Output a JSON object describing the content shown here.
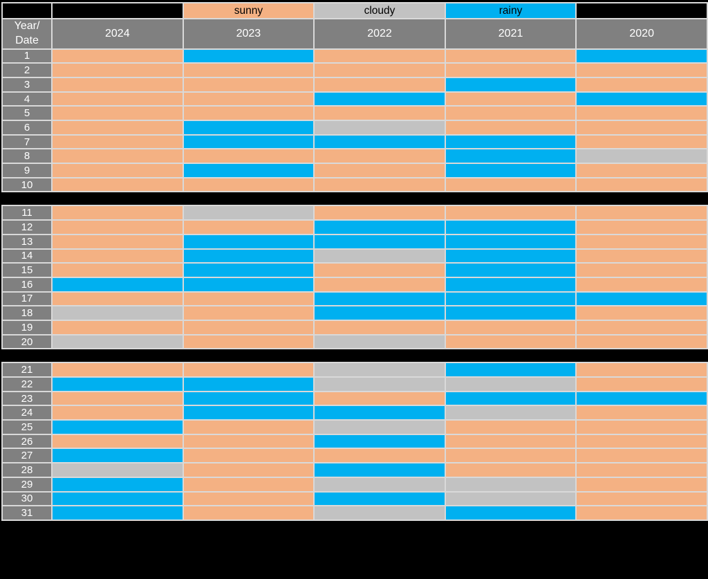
{
  "colors": {
    "sunny": "#F4B183",
    "cloudy": "#C2C2C2",
    "rainy": "#00B0F0",
    "header_bg": "#808080",
    "header_text": "#FFFFFF",
    "grid_line": "#D9D9D9",
    "page_background": "#000000"
  },
  "legend": {
    "items": [
      {
        "label": "sunny",
        "color": "#F4B183"
      },
      {
        "label": "cloudy",
        "color": "#C2C2C2"
      },
      {
        "label": "rainy",
        "color": "#00B0F0"
      }
    ]
  },
  "header": {
    "corner_label": "Year/\nDate"
  },
  "chart_data": {
    "type": "heatmap",
    "title": "",
    "x_labels": [
      "2024",
      "2023",
      "2022",
      "2021",
      "2020"
    ],
    "y_labels": [
      1,
      2,
      3,
      4,
      5,
      6,
      7,
      8,
      9,
      10,
      11,
      12,
      13,
      14,
      15,
      16,
      17,
      18,
      19,
      20,
      21,
      22,
      23,
      24,
      25,
      26,
      27,
      28,
      29,
      30,
      31
    ],
    "categories": [
      "sunny",
      "cloudy",
      "rainy"
    ],
    "row_groups": [
      [
        1,
        10
      ],
      [
        11,
        20
      ],
      [
        21,
        31
      ]
    ],
    "legend_position": "top",
    "values": [
      [
        "sunny",
        "rainy",
        "sunny",
        "sunny",
        "rainy"
      ],
      [
        "sunny",
        "sunny",
        "sunny",
        "sunny",
        "sunny"
      ],
      [
        "sunny",
        "sunny",
        "sunny",
        "rainy",
        "sunny"
      ],
      [
        "sunny",
        "sunny",
        "rainy",
        "sunny",
        "rainy"
      ],
      [
        "sunny",
        "sunny",
        "sunny",
        "sunny",
        "sunny"
      ],
      [
        "sunny",
        "rainy",
        "cloudy",
        "sunny",
        "sunny"
      ],
      [
        "sunny",
        "rainy",
        "rainy",
        "rainy",
        "sunny"
      ],
      [
        "sunny",
        "sunny",
        "sunny",
        "rainy",
        "cloudy"
      ],
      [
        "sunny",
        "rainy",
        "sunny",
        "rainy",
        "sunny"
      ],
      [
        "sunny",
        "sunny",
        "sunny",
        "sunny",
        "sunny"
      ],
      [
        "sunny",
        "cloudy",
        "sunny",
        "sunny",
        "sunny"
      ],
      [
        "sunny",
        "sunny",
        "rainy",
        "rainy",
        "sunny"
      ],
      [
        "sunny",
        "rainy",
        "rainy",
        "rainy",
        "sunny"
      ],
      [
        "sunny",
        "rainy",
        "cloudy",
        "rainy",
        "sunny"
      ],
      [
        "sunny",
        "rainy",
        "sunny",
        "rainy",
        "sunny"
      ],
      [
        "rainy",
        "rainy",
        "sunny",
        "rainy",
        "sunny"
      ],
      [
        "sunny",
        "sunny",
        "rainy",
        "rainy",
        "rainy"
      ],
      [
        "cloudy",
        "sunny",
        "rainy",
        "rainy",
        "sunny"
      ],
      [
        "sunny",
        "sunny",
        "sunny",
        "sunny",
        "sunny"
      ],
      [
        "cloudy",
        "sunny",
        "cloudy",
        "sunny",
        "sunny"
      ],
      [
        "sunny",
        "sunny",
        "cloudy",
        "rainy",
        "sunny"
      ],
      [
        "rainy",
        "rainy",
        "cloudy",
        "cloudy",
        "sunny"
      ],
      [
        "sunny",
        "rainy",
        "sunny",
        "rainy",
        "rainy"
      ],
      [
        "sunny",
        "rainy",
        "rainy",
        "cloudy",
        "sunny"
      ],
      [
        "rainy",
        "sunny",
        "cloudy",
        "sunny",
        "sunny"
      ],
      [
        "sunny",
        "sunny",
        "rainy",
        "sunny",
        "sunny"
      ],
      [
        "rainy",
        "sunny",
        "sunny",
        "sunny",
        "sunny"
      ],
      [
        "cloudy",
        "sunny",
        "rainy",
        "sunny",
        "sunny"
      ],
      [
        "rainy",
        "sunny",
        "cloudy",
        "cloudy",
        "sunny"
      ],
      [
        "rainy",
        "sunny",
        "rainy",
        "cloudy",
        "sunny"
      ],
      [
        "rainy",
        "sunny",
        "cloudy",
        "rainy",
        "sunny"
      ]
    ]
  }
}
